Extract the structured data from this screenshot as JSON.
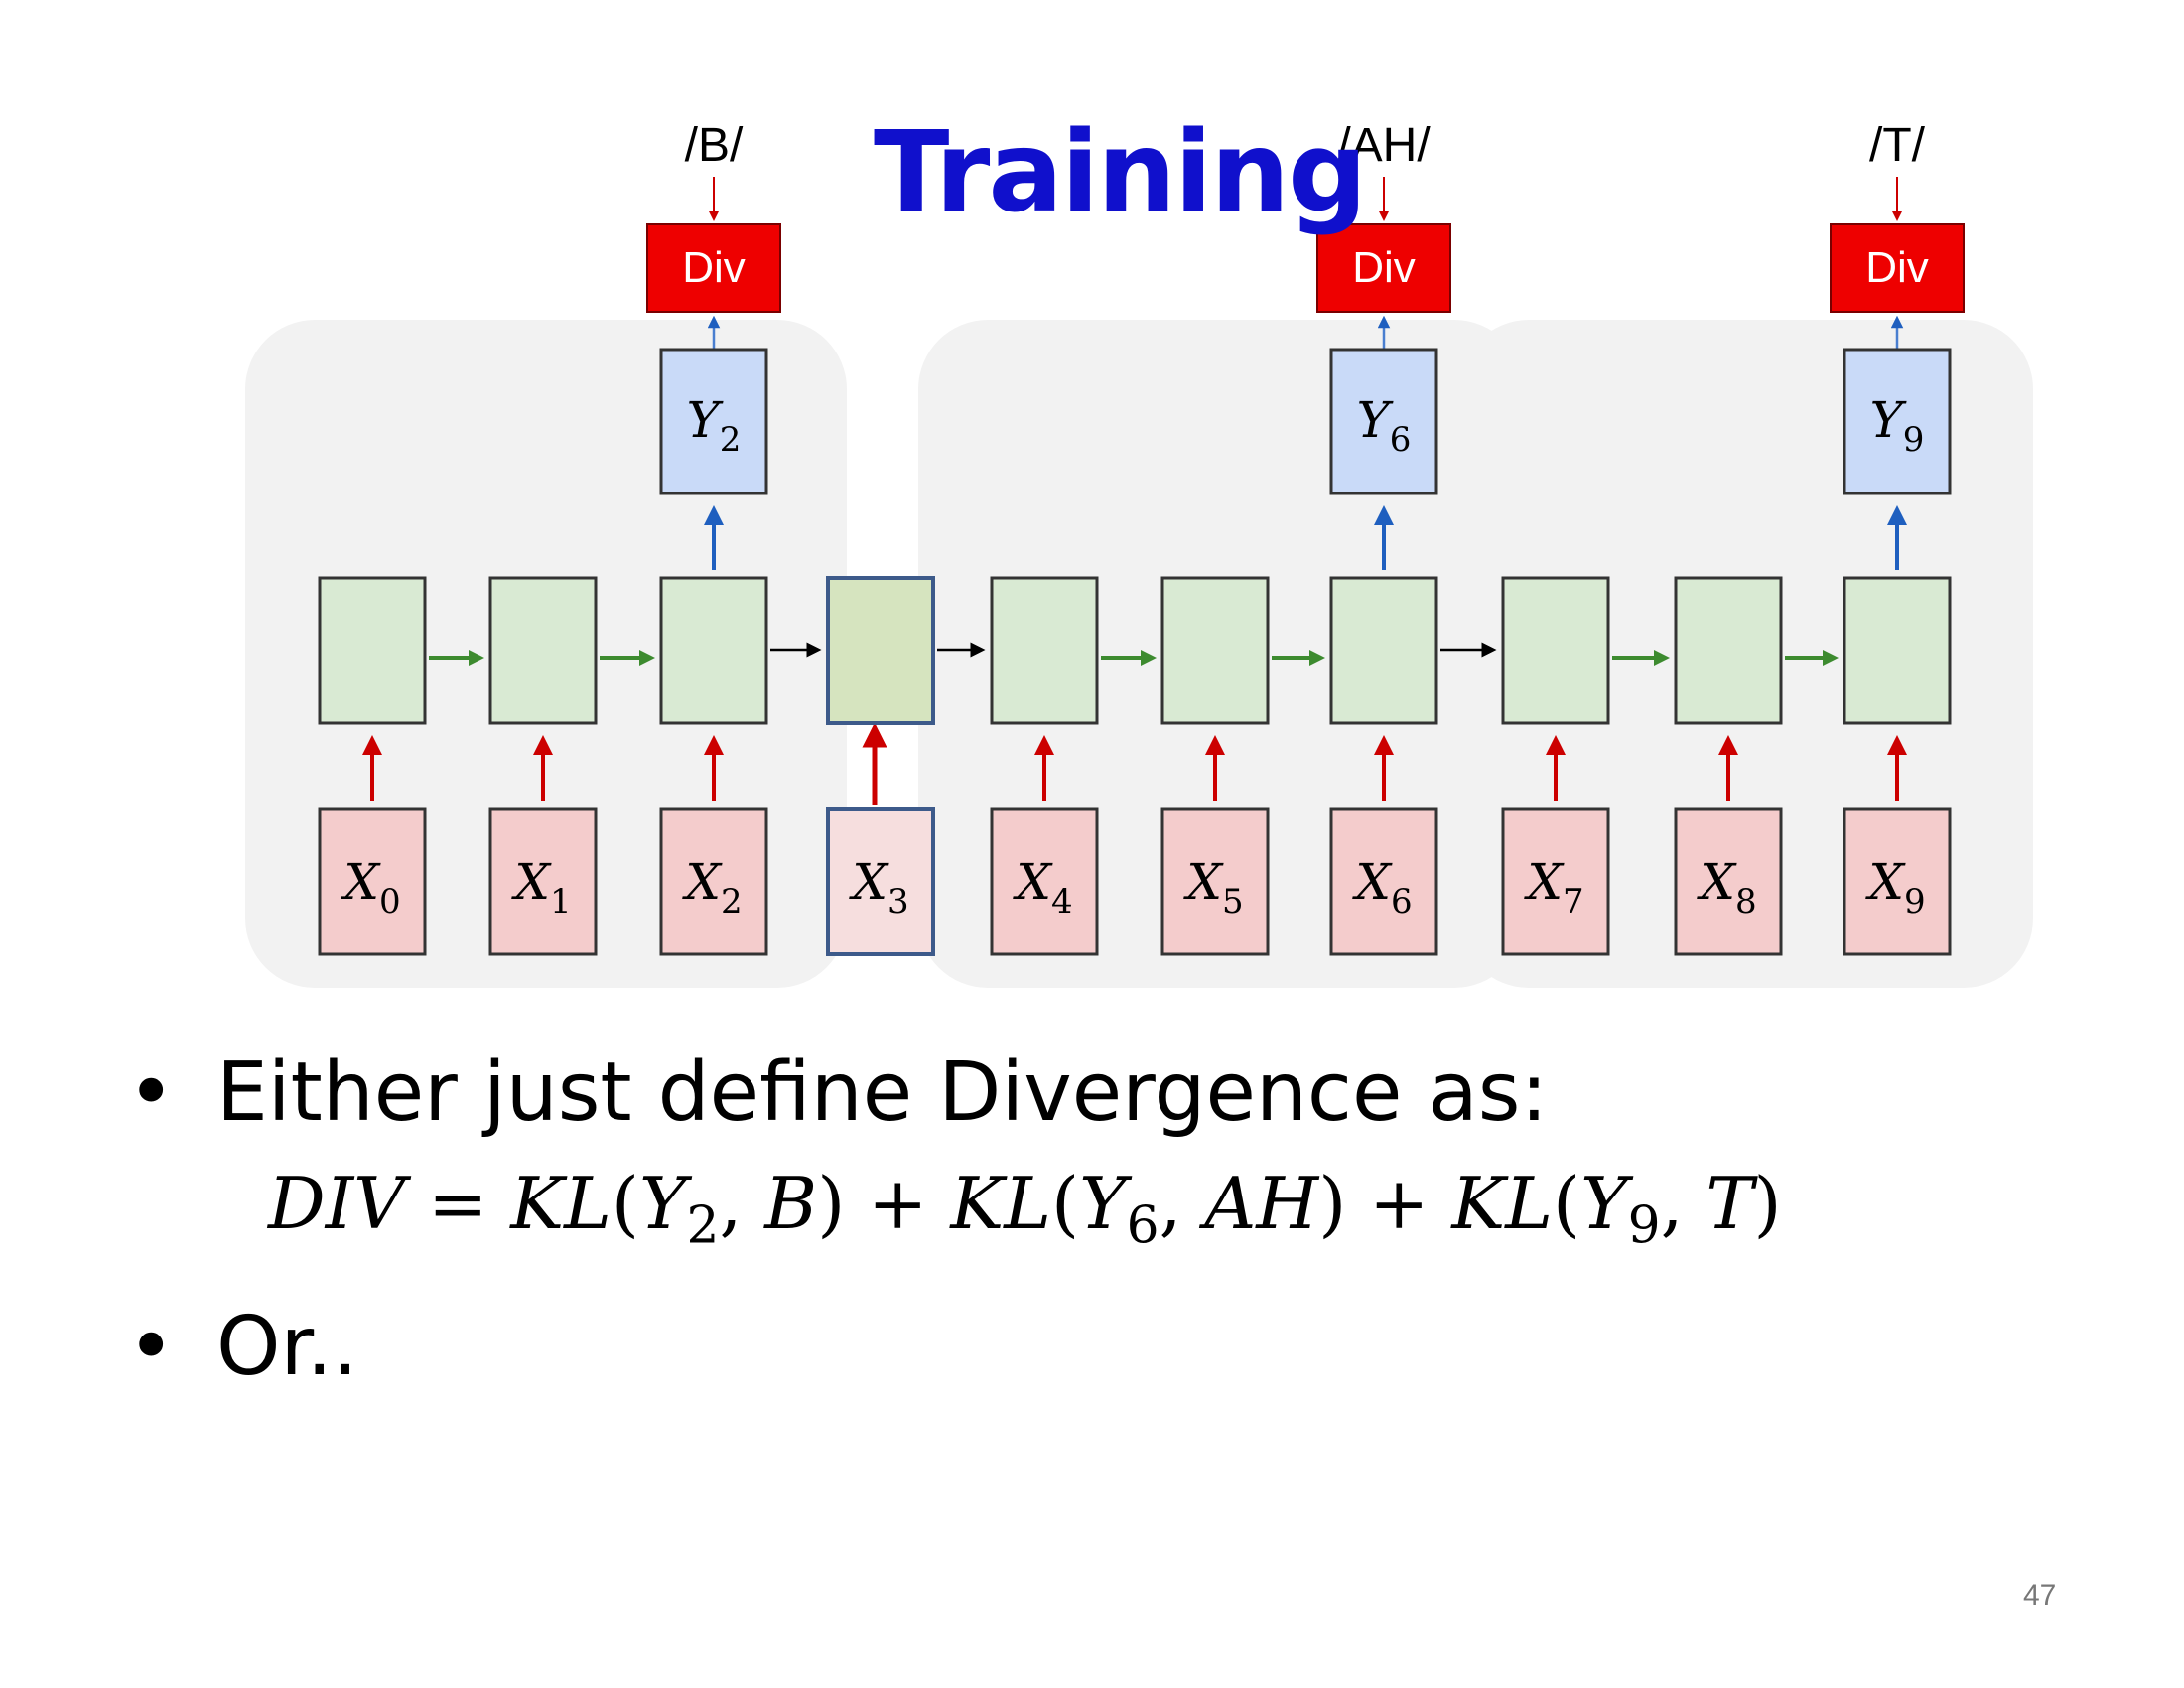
{
  "title": "Training",
  "diagram": {
    "inputs": [
      {
        "label": "X",
        "sub": "0"
      },
      {
        "label": "X",
        "sub": "1"
      },
      {
        "label": "X",
        "sub": "2"
      },
      {
        "label": "X",
        "sub": "3"
      },
      {
        "label": "X",
        "sub": "4"
      },
      {
        "label": "X",
        "sub": "5"
      },
      {
        "label": "X",
        "sub": "6"
      },
      {
        "label": "X",
        "sub": "7"
      },
      {
        "label": "X",
        "sub": "8"
      },
      {
        "label": "X",
        "sub": "9"
      }
    ],
    "outputs": [
      {
        "label": "Y",
        "sub": "2",
        "step": 2,
        "target": "/B/",
        "div": "Div"
      },
      {
        "label": "Y",
        "sub": "6",
        "step": 6,
        "target": "/AH/",
        "div": "Div"
      },
      {
        "label": "Y",
        "sub": "9",
        "step": 9,
        "target": "/T/",
        "div": "Div"
      }
    ],
    "highlighted_step": 3
  },
  "bullets": {
    "first": "Either just define Divergence as:",
    "second": "Or.."
  },
  "formula": {
    "lhs": "DIV",
    "equals": "=",
    "terms": [
      {
        "fn": "KL",
        "y": "Y",
        "sub": "2",
        "target": "B"
      },
      {
        "fn": "KL",
        "y": "Y",
        "sub": "6",
        "target": "AH"
      },
      {
        "fn": "KL",
        "y": "Y",
        "sub": "9",
        "target": "T"
      }
    ],
    "plus": "+"
  },
  "page_number": "47",
  "colors": {
    "title": "#1010cc",
    "input_fill": "#f4cccc",
    "hidden_fill": "#d9ead3",
    "highlight_fill": "#d6e4bf",
    "output_fill": "#c9daf8",
    "div_fill": "#ee0000",
    "red_arrow": "#cc0000",
    "blue_arrow": "#1f5fbf",
    "green_arrow": "#3d8b2f",
    "panel": "#f2f2f2",
    "highlight_border": "#3d5a8a"
  }
}
